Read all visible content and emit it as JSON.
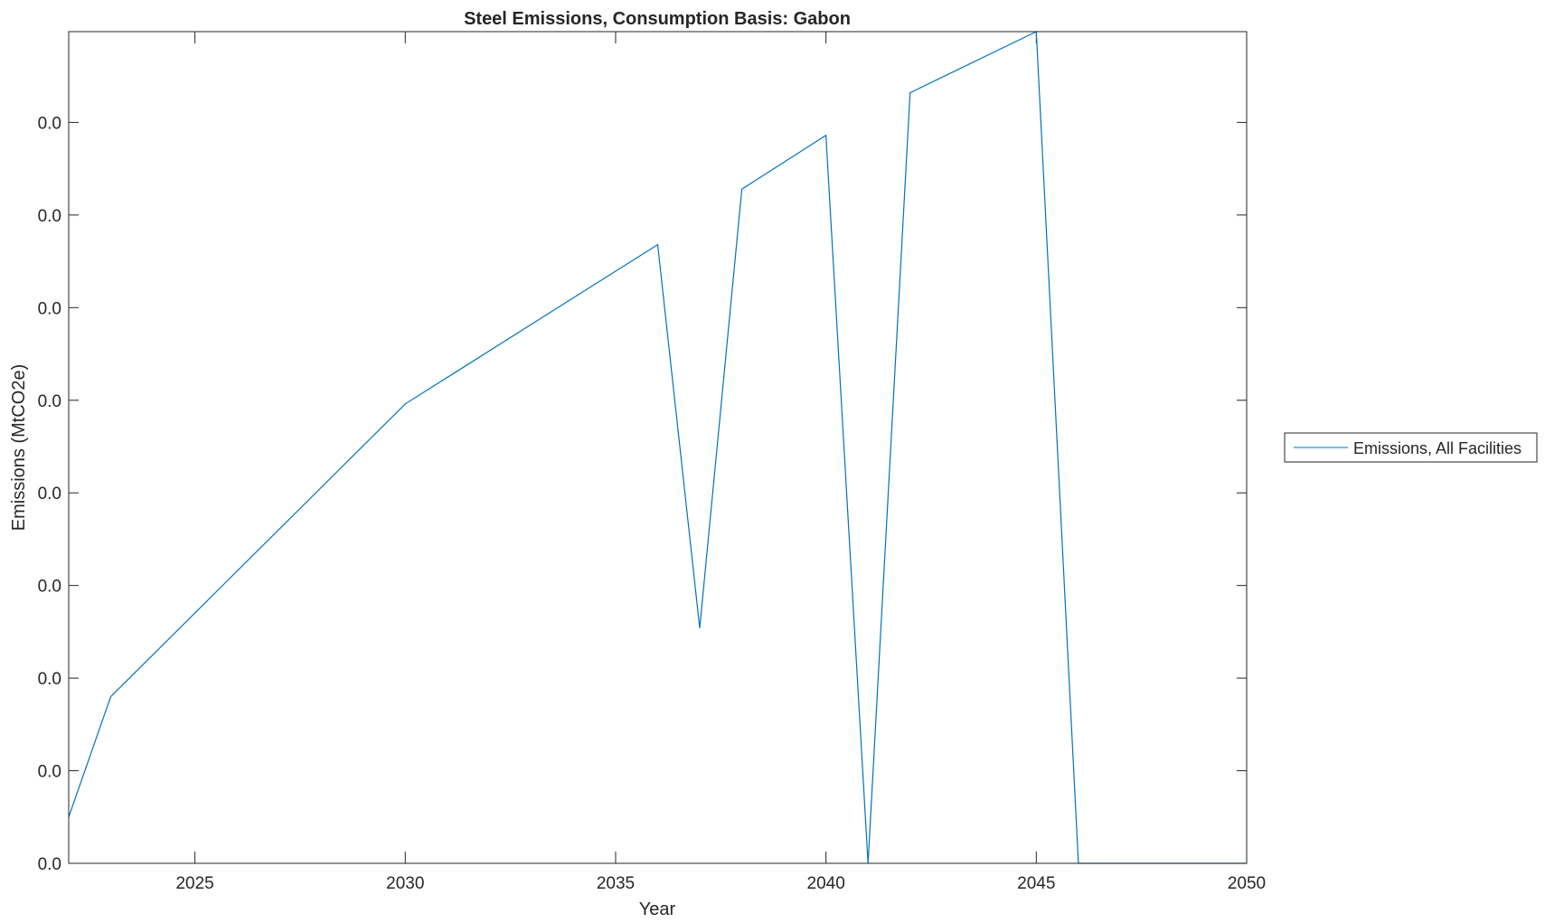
{
  "chart_data": {
    "type": "line",
    "title": "Steel Emissions, Consumption Basis: Gabon",
    "xlabel": "Year",
    "ylabel": "Emissions (MtCO2e)",
    "xlim": [
      2022,
      2050
    ],
    "ylim": [
      0,
      0.0449
    ],
    "xticks": [
      2025,
      2030,
      2035,
      2040,
      2045,
      2050
    ],
    "xtick_labels": [
      "2025",
      "2030",
      "2035",
      "2040",
      "2045",
      "2050"
    ],
    "yticks": [
      0,
      0.005,
      0.01,
      0.015,
      0.02,
      0.025,
      0.03,
      0.035,
      0.04
    ],
    "ytick_labels": [
      "0.0",
      "0.0",
      "0.0",
      "0.0",
      "0.0",
      "0.0",
      "0.0",
      "0.0",
      "0.0"
    ],
    "grid": false,
    "legend_position": "outside-right",
    "series": [
      {
        "name": "Emissions, All Facilities",
        "color": "#0072BD",
        "x": [
          2022,
          2023,
          2030,
          2036,
          2037,
          2038,
          2040,
          2041,
          2042,
          2045,
          2046,
          2050
        ],
        "y": [
          0.0025,
          0.009,
          0.0248,
          0.0334,
          0.0127,
          0.0364,
          0.0393,
          0,
          0.0416,
          0.0449,
          0,
          0
        ]
      }
    ]
  }
}
